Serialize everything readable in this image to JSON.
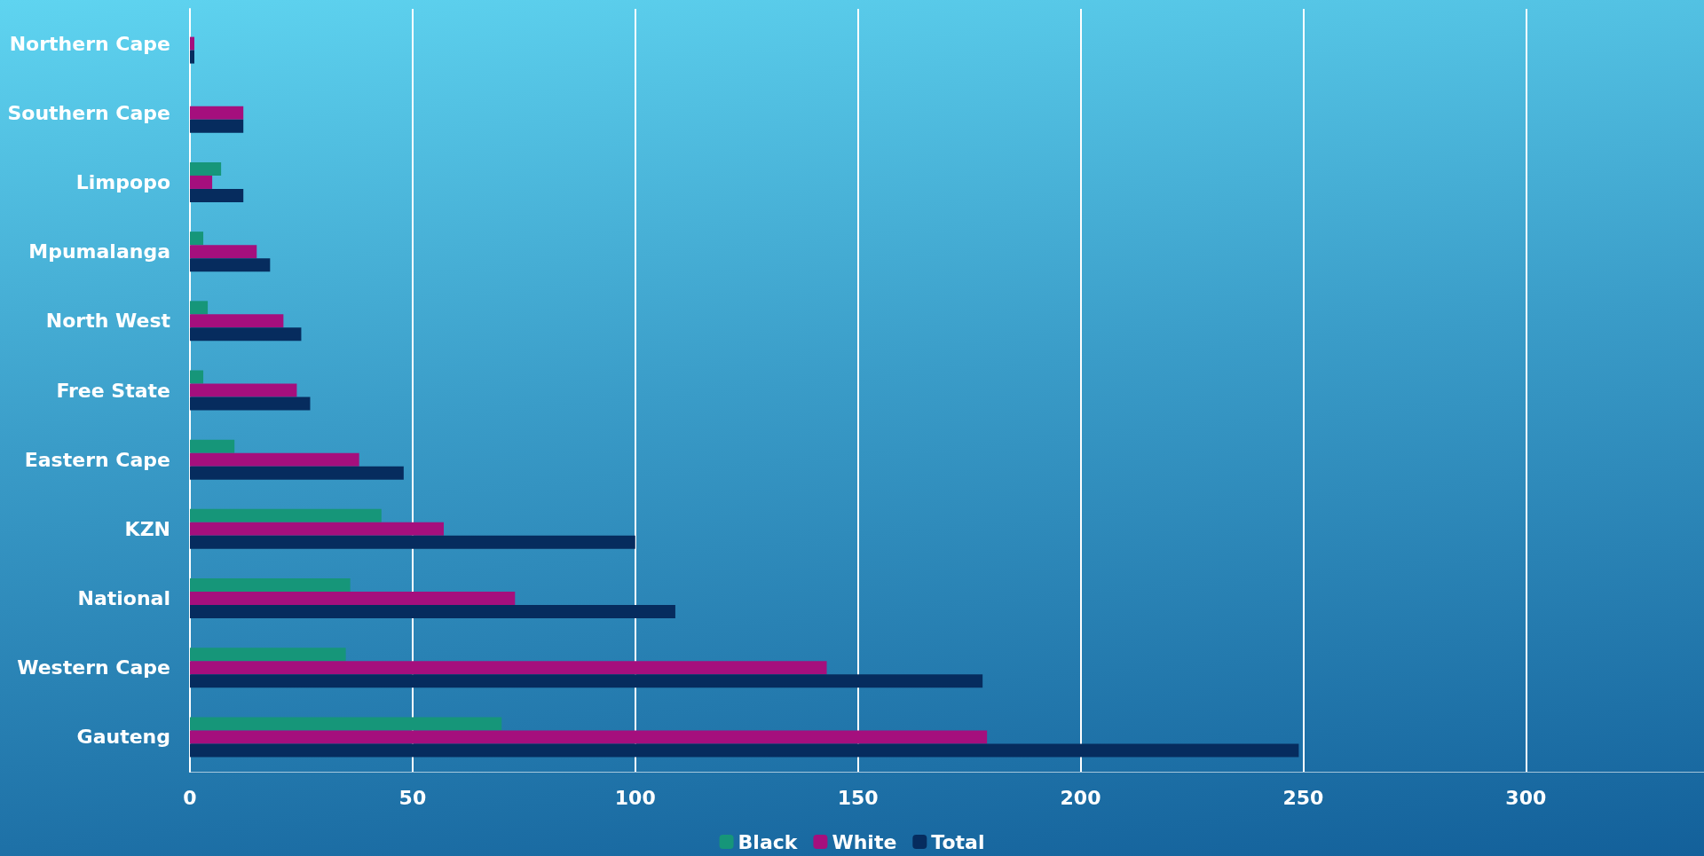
{
  "chart_data": {
    "type": "bar",
    "orientation": "horizontal",
    "categories": [
      "Northern Cape",
      "Southern Cape",
      "Limpopo",
      "Mpumalanga",
      "North West",
      "Free State",
      "Eastern Cape",
      "KZN",
      "National",
      "Western Cape",
      "Gauteng"
    ],
    "series": [
      {
        "name": "Black",
        "color": "#169679",
        "values": [
          0,
          0,
          7,
          3,
          4,
          3,
          10,
          43,
          36,
          35,
          70
        ]
      },
      {
        "name": "White",
        "color": "#a50f7d",
        "values": [
          1,
          12,
          5,
          15,
          21,
          24,
          38,
          57,
          73,
          143,
          179
        ]
      },
      {
        "name": "Total",
        "color": "#062c5e",
        "values": [
          1,
          12,
          12,
          18,
          25,
          27,
          48,
          100,
          109,
          178,
          249
        ]
      }
    ],
    "xlim": [
      0,
      340
    ],
    "xticks": [
      0,
      50,
      100,
      150,
      200,
      250,
      300
    ],
    "grid": "x",
    "legend": "bottom"
  }
}
